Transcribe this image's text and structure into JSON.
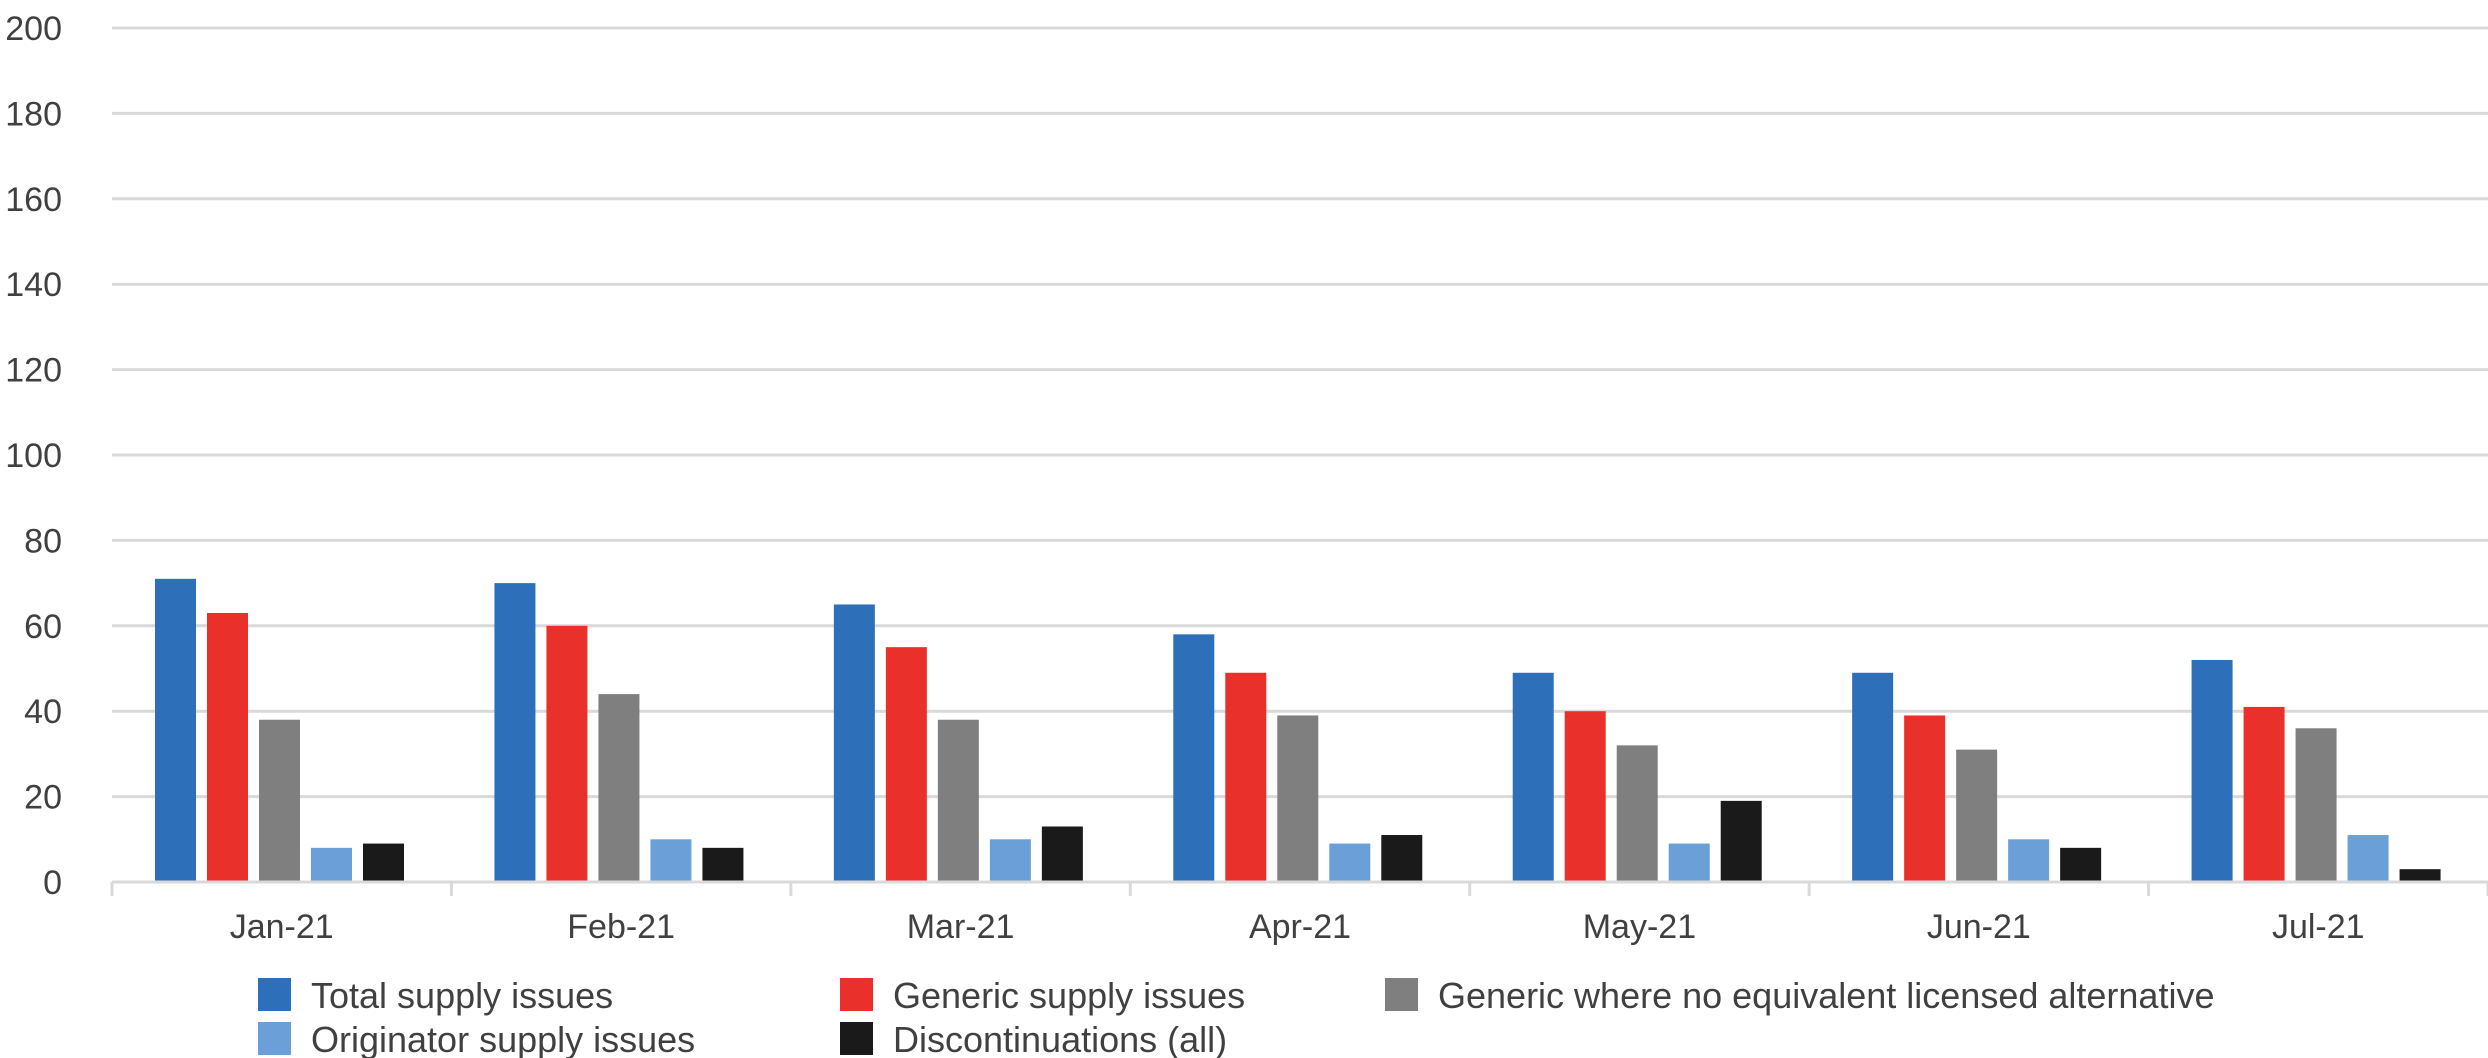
{
  "chart_data": {
    "type": "bar",
    "title": "",
    "xlabel": "",
    "ylabel": "",
    "ylim": [
      0,
      200
    ],
    "yticks": [
      0,
      20,
      40,
      60,
      80,
      100,
      120,
      140,
      160,
      180,
      200
    ],
    "grid": true,
    "legend_position": "bottom",
    "categories": [
      "Jan-21",
      "Feb-21",
      "Mar-21",
      "Apr-21",
      "May-21",
      "Jun-21",
      "Jul-21"
    ],
    "series": [
      {
        "name": "Total supply issues",
        "color": "#2E6FBA",
        "values": [
          71,
          70,
          65,
          58,
          49,
          49,
          52
        ]
      },
      {
        "name": "Generic supply issues",
        "color": "#E9302A",
        "values": [
          63,
          60,
          55,
          49,
          40,
          39,
          41
        ]
      },
      {
        "name": "Generic where no equivalent licensed alternative",
        "color": "#7F7F7F",
        "values": [
          38,
          44,
          38,
          39,
          32,
          31,
          36
        ]
      },
      {
        "name": "Originator supply issues",
        "color": "#6A9FD8",
        "values": [
          8,
          10,
          10,
          9,
          9,
          10,
          11
        ]
      },
      {
        "name": "Discontinuations (all)",
        "color": "#1A1A1A",
        "values": [
          9,
          8,
          13,
          11,
          19,
          8,
          3
        ]
      }
    ]
  }
}
